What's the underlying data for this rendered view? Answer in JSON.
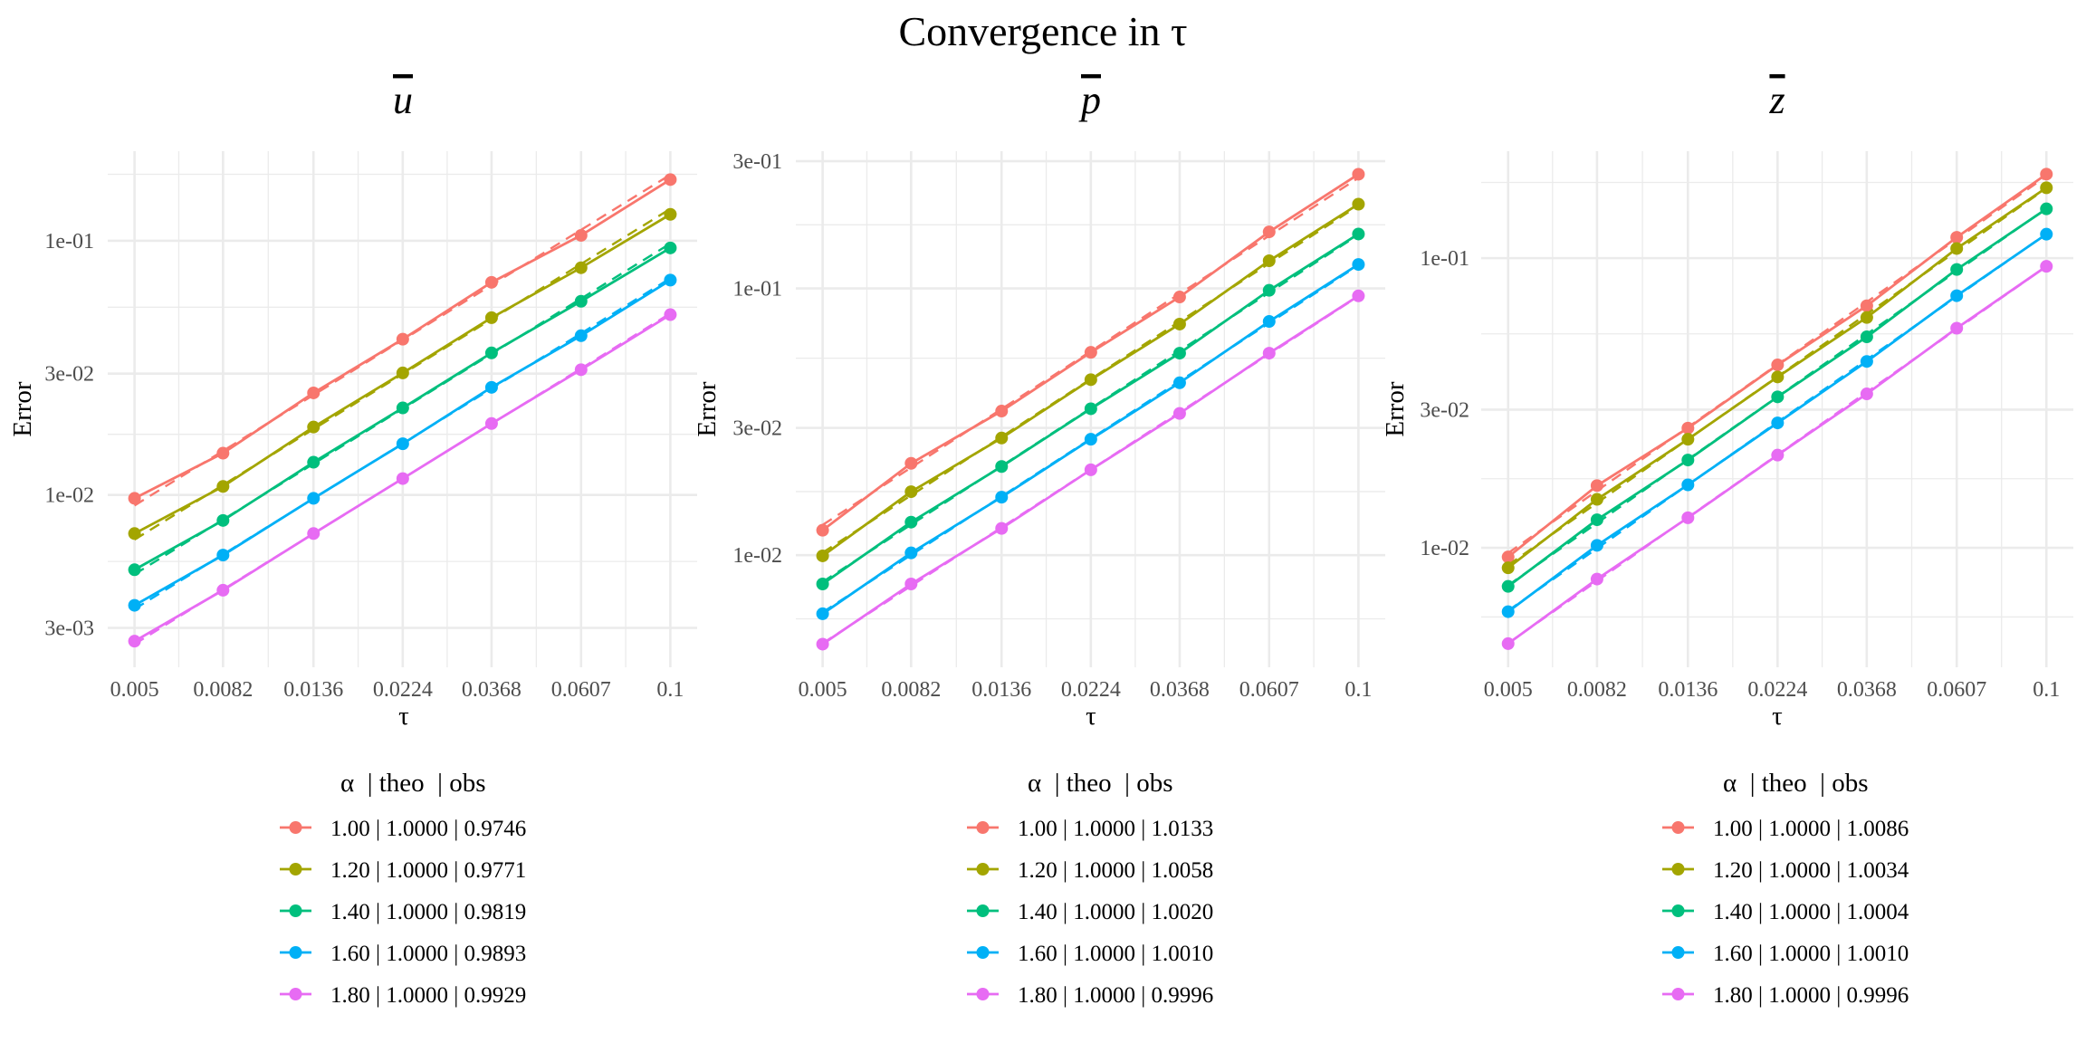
{
  "title": "Convergence in τ",
  "chart_data": [
    {
      "type": "line",
      "title": "u",
      "xlabel": "τ",
      "ylabel": "Error",
      "x_scale": "log",
      "y_scale": "log",
      "x": [
        0.005,
        0.0082,
        0.0136,
        0.0224,
        0.0368,
        0.0607,
        0.1
      ],
      "x_tick_labels": [
        "0.005",
        "0.0082",
        "0.0136",
        "0.0224",
        "0.0368",
        "0.0607",
        "0.1"
      ],
      "y_ticks": [
        0.003,
        0.01,
        0.03,
        0.1
      ],
      "y_tick_labels": [
        "3e-03",
        "1e-02",
        "3e-02",
        "1e-01"
      ],
      "ylim": [
        0.0021,
        0.225
      ],
      "grid": true,
      "legend_title": "α  | theo  | obs",
      "legend_position": "bottom",
      "series": [
        {
          "name": "1.00 | 1.0000 | 0.9746",
          "color": "#F8766D",
          "values": [
            0.0097,
            0.0146,
            0.0252,
            0.041,
            0.0686,
            0.105,
            0.174
          ]
        },
        {
          "name": "1.20 | 1.0000 | 0.9771",
          "color": "#A3A500",
          "values": [
            0.00705,
            0.0108,
            0.0185,
            0.0302,
            0.0498,
            0.0783,
            0.127
          ]
        },
        {
          "name": "1.40 | 1.0000 | 0.9819",
          "color": "#00BF7D",
          "values": [
            0.00508,
            0.00794,
            0.01345,
            0.022,
            0.0362,
            0.0578,
            0.0937
          ]
        },
        {
          "name": "1.60 | 1.0000 | 0.9893",
          "color": "#00B0F6",
          "values": [
            0.00368,
            0.0058,
            0.0097,
            0.0159,
            0.0265,
            0.0423,
            0.07
          ]
        },
        {
          "name": "1.80 | 1.0000 | 0.9929",
          "color": "#E76BF3",
          "values": [
            0.00266,
            0.00422,
            0.00705,
            0.0116,
            0.0191,
            0.0311,
            0.0512
          ]
        }
      ]
    },
    {
      "type": "line",
      "title": "p",
      "xlabel": "τ",
      "ylabel": "Error",
      "x_scale": "log",
      "y_scale": "log",
      "x": [
        0.005,
        0.0082,
        0.0136,
        0.0224,
        0.0368,
        0.0607,
        0.1
      ],
      "x_tick_labels": [
        "0.005",
        "0.0082",
        "0.0136",
        "0.0224",
        "0.0368",
        "0.0607",
        "0.1"
      ],
      "y_ticks": [
        0.01,
        0.03,
        0.1,
        0.3
      ],
      "y_tick_labels": [
        "1e-02",
        "3e-02",
        "1e-01",
        "3e-01"
      ],
      "ylim": [
        0.0038,
        0.327
      ],
      "grid": true,
      "legend_title": "α  | theo  | obs",
      "legend_position": "bottom",
      "series": [
        {
          "name": "1.00 | 1.0000 | 1.0133",
          "color": "#F8766D",
          "values": [
            0.0124,
            0.0221,
            0.0347,
            0.0576,
            0.0929,
            0.163,
            0.268
          ]
        },
        {
          "name": "1.20 | 1.0000 | 1.0058",
          "color": "#A3A500",
          "values": [
            0.00994,
            0.0173,
            0.0275,
            0.0455,
            0.0735,
            0.127,
            0.207
          ]
        },
        {
          "name": "1.40 | 1.0000 | 1.0020",
          "color": "#00BF7D",
          "values": [
            0.0078,
            0.0133,
            0.0215,
            0.0354,
            0.0572,
            0.0984,
            0.16
          ]
        },
        {
          "name": "1.60 | 1.0000 | 1.0010",
          "color": "#00B0F6",
          "values": [
            0.00603,
            0.0102,
            0.0165,
            0.0272,
            0.0443,
            0.0752,
            0.123
          ]
        },
        {
          "name": "1.80 | 1.0000 | 0.9996",
          "color": "#E76BF3",
          "values": [
            0.00464,
            0.0078,
            0.0126,
            0.0209,
            0.034,
            0.0572,
            0.0938
          ]
        }
      ]
    },
    {
      "type": "line",
      "title": "z",
      "xlabel": "τ",
      "ylabel": "Error",
      "x_scale": "log",
      "y_scale": "log",
      "x": [
        0.005,
        0.0082,
        0.0136,
        0.0224,
        0.0368,
        0.0607,
        0.1
      ],
      "x_tick_labels": [
        "0.005",
        "0.0082",
        "0.0136",
        "0.0224",
        "0.0368",
        "0.0607",
        "0.1"
      ],
      "y_ticks": [
        0.01,
        0.03,
        0.1
      ],
      "y_tick_labels": [
        "1e-02",
        "3e-02",
        "1e-01"
      ],
      "ylim": [
        0.00387,
        0.234
      ],
      "grid": true,
      "legend_title": "α  | theo  | obs",
      "legend_position": "bottom",
      "series": [
        {
          "name": "1.00 | 1.0000 | 1.0086",
          "color": "#F8766D",
          "values": [
            0.0093,
            0.0164,
            0.0259,
            0.0428,
            0.0685,
            0.118,
            0.195
          ]
        },
        {
          "name": "1.20 | 1.0000 | 1.0034",
          "color": "#A3A500",
          "values": [
            0.00853,
            0.0147,
            0.0237,
            0.0389,
            0.0624,
            0.108,
            0.175
          ]
        },
        {
          "name": "1.40 | 1.0000 | 1.0004",
          "color": "#00BF7D",
          "values": [
            0.00736,
            0.0125,
            0.0201,
            0.0332,
            0.0535,
            0.0914,
            0.148
          ]
        },
        {
          "name": "1.60 | 1.0000 | 1.0010",
          "color": "#00B0F6",
          "values": [
            0.00602,
            0.0102,
            0.0165,
            0.027,
            0.044,
            0.0742,
            0.121
          ]
        },
        {
          "name": "1.80 | 1.0000 | 0.9996",
          "color": "#E76BF3",
          "values": [
            0.00467,
            0.0078,
            0.0127,
            0.0209,
            0.034,
            0.0573,
            0.0937
          ]
        }
      ]
    }
  ]
}
